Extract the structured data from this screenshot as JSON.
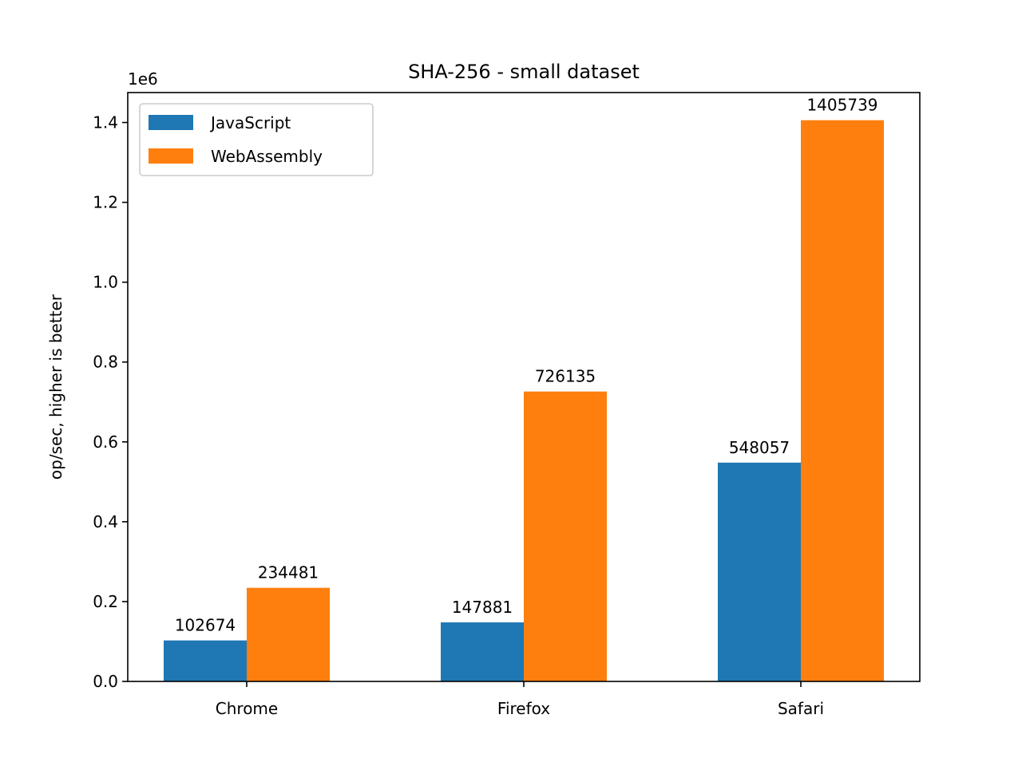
{
  "chart_data": {
    "type": "bar",
    "title": "SHA-256 - small dataset",
    "xlabel": "",
    "ylabel": "op/sec, higher is better",
    "y_scale_label": "1e6",
    "categories": [
      "Chrome",
      "Firefox",
      "Safari"
    ],
    "series": [
      {
        "name": "JavaScript",
        "color": "#1f77b4",
        "values": [
          102674,
          147881,
          548057
        ]
      },
      {
        "name": "WebAssembly",
        "color": "#ff7f0e",
        "values": [
          234481,
          726135,
          1405739
        ]
      }
    ],
    "ylim": [
      0,
      1475000
    ],
    "y_ticks": [
      0,
      200000,
      400000,
      600000,
      800000,
      1000000,
      1200000,
      1400000
    ],
    "y_tick_labels": [
      "0.0",
      "0.2",
      "0.4",
      "0.6",
      "0.8",
      "1.0",
      "1.2",
      "1.4"
    ],
    "grid": false,
    "legend_position": "top-left"
  }
}
